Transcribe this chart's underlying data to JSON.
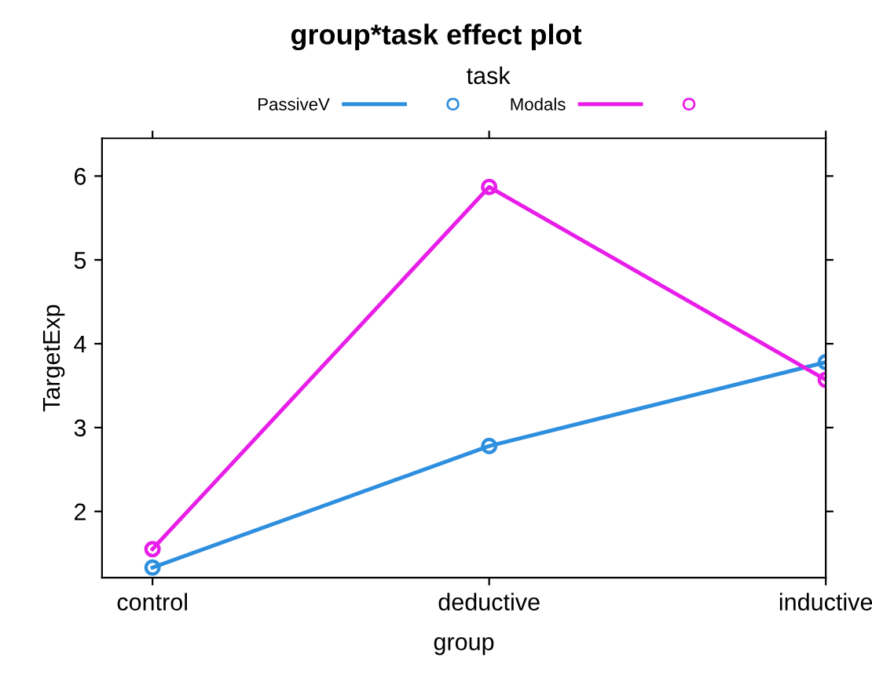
{
  "chart_data": {
    "type": "line",
    "title": "group*task effect plot",
    "legend_title": "task",
    "xlabel": "group",
    "ylabel": "TargetExp",
    "categories": [
      "control",
      "deductive",
      "inductive"
    ],
    "series": [
      {
        "name": "PassiveV",
        "color": "#2e8fdf",
        "values": [
          1.33,
          2.78,
          3.78
        ]
      },
      {
        "name": "Modals",
        "color": "#e81ee8",
        "values": [
          1.55,
          5.87,
          3.57
        ]
      }
    ],
    "ylim": [
      1.21,
      6.45
    ],
    "yticks": [
      2,
      3,
      4,
      5,
      6
    ],
    "grid": false,
    "legend": "top",
    "marker": "circle",
    "line_style": "solid"
  }
}
